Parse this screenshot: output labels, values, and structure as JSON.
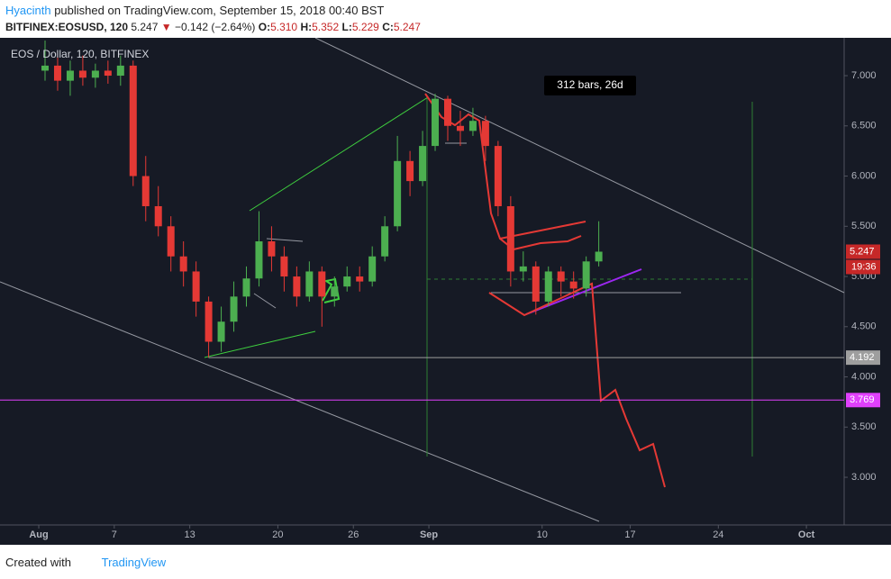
{
  "header": {
    "author": "Hyacinth",
    "published": "published on TradingView.com, September 15, 2018 00:40 BST",
    "symbol": "BITFINEX:EOSUSD, 120",
    "last": "5.247",
    "arrow": "▼",
    "change": "−0.142 (−2.64%)",
    "open_label": "O:",
    "open": "5.310",
    "high_label": "H:",
    "high": "5.352",
    "low_label": "L:",
    "low": "5.229",
    "close_label": "C:",
    "close": "5.247"
  },
  "footer": {
    "created": "Created with",
    "brand": "TradingView"
  },
  "chart_data": {
    "type": "candlestick",
    "title": "EOS / Dollar, 120, BITFINEX",
    "annotation": "312 bars, 26d",
    "up_color": "#4caf50",
    "down_color": "#e53935",
    "x": [
      0.5,
      1.5,
      2.5,
      3.5,
      4.5,
      5.5,
      6.5,
      7.5,
      8.5,
      9.5,
      10.5,
      11.5,
      12.5,
      13.5,
      14.5,
      15.5,
      16.5,
      17.5,
      18.5,
      19.5,
      20.5,
      21.5,
      22.5,
      23.5,
      24.5,
      25.5,
      26.5,
      27.5,
      28.5,
      29.5,
      30.5,
      31.5,
      32.5,
      33.5,
      34.5,
      35.5,
      36.5,
      37.5,
      38.5,
      39.5,
      40.5,
      41.5,
      42.5,
      43.5,
      44.5
    ],
    "open": [
      7.05,
      7.1,
      6.95,
      7.05,
      6.98,
      7.05,
      7.0,
      7.1,
      6.0,
      5.7,
      5.5,
      5.2,
      5.05,
      4.75,
      4.35,
      4.55,
      4.8,
      4.98,
      5.35,
      5.2,
      5.0,
      4.8,
      5.05,
      4.8,
      4.9,
      5.0,
      4.95,
      5.2,
      5.5,
      6.15,
      5.95,
      6.3,
      6.77,
      6.5,
      6.45,
      6.55,
      6.3,
      5.7,
      5.05,
      5.1,
      4.75,
      5.05,
      4.95,
      4.88,
      5.15
    ],
    "high": [
      7.35,
      7.25,
      7.15,
      7.2,
      7.12,
      7.15,
      7.2,
      7.15,
      6.2,
      5.9,
      5.6,
      5.35,
      5.15,
      4.8,
      4.7,
      4.95,
      5.1,
      5.65,
      5.5,
      5.3,
      5.1,
      5.15,
      5.1,
      5.0,
      5.1,
      5.1,
      5.3,
      5.6,
      6.4,
      6.25,
      6.45,
      6.82,
      6.8,
      6.65,
      6.68,
      6.6,
      6.35,
      5.8,
      5.25,
      5.15,
      5.1,
      5.1,
      5.05,
      5.2,
      5.55
    ],
    "low": [
      6.95,
      6.85,
      6.8,
      6.9,
      6.88,
      6.92,
      6.9,
      5.9,
      5.55,
      5.4,
      5.05,
      4.9,
      4.6,
      4.192,
      4.25,
      4.45,
      4.7,
      4.9,
      5.05,
      4.85,
      4.7,
      4.75,
      4.5,
      4.7,
      4.85,
      4.85,
      4.9,
      5.15,
      5.45,
      5.8,
      5.9,
      6.25,
      6.35,
      6.3,
      6.4,
      6.15,
      5.6,
      4.9,
      4.95,
      4.62,
      4.7,
      4.8,
      4.78,
      4.8,
      5.1
    ],
    "close": [
      7.1,
      6.95,
      7.05,
      6.98,
      7.05,
      7.0,
      7.1,
      6.0,
      5.7,
      5.5,
      5.2,
      5.05,
      4.75,
      4.35,
      4.55,
      4.8,
      4.98,
      5.35,
      5.2,
      5.0,
      4.8,
      5.05,
      4.8,
      4.9,
      5.0,
      4.95,
      5.2,
      5.5,
      6.15,
      5.95,
      6.3,
      6.77,
      6.5,
      6.45,
      6.55,
      6.3,
      5.7,
      5.05,
      5.1,
      4.75,
      5.05,
      4.95,
      4.88,
      5.15,
      5.247
    ],
    "xlim": [
      -3.08,
      64.0
    ],
    "ylim": [
      2.525,
      7.377
    ],
    "xticks": [
      {
        "value": 0,
        "label": "Aug"
      },
      {
        "value": 6,
        "label": "7"
      },
      {
        "value": 12,
        "label": "13"
      },
      {
        "value": 19,
        "label": "20"
      },
      {
        "value": 25,
        "label": "26"
      },
      {
        "value": 31,
        "label": "Sep"
      },
      {
        "value": 40,
        "label": "10"
      },
      {
        "value": 47,
        "label": "17"
      },
      {
        "value": 54,
        "label": "24"
      },
      {
        "value": 61,
        "label": "Oct"
      }
    ],
    "yticks": [
      {
        "value": 3,
        "label": "3.000"
      },
      {
        "value": 3.5,
        "label": "3.500"
      },
      {
        "value": 4,
        "label": "4.000"
      },
      {
        "value": 4.5,
        "label": "4.500"
      },
      {
        "value": 5,
        "label": "5.000"
      },
      {
        "value": 5.5,
        "label": "5.500"
      },
      {
        "value": 6,
        "label": "6.000"
      },
      {
        "value": 6.5,
        "label": "6.500"
      },
      {
        "value": 7,
        "label": "7.000"
      }
    ],
    "levels": [
      {
        "value": 4.192,
        "color": "#9e9e9e"
      },
      {
        "value": 3.769,
        "color": "#e040fb"
      }
    ],
    "last_price": {
      "value": 5.247,
      "color": "#c62828",
      "countdown": "19:36"
    }
  }
}
